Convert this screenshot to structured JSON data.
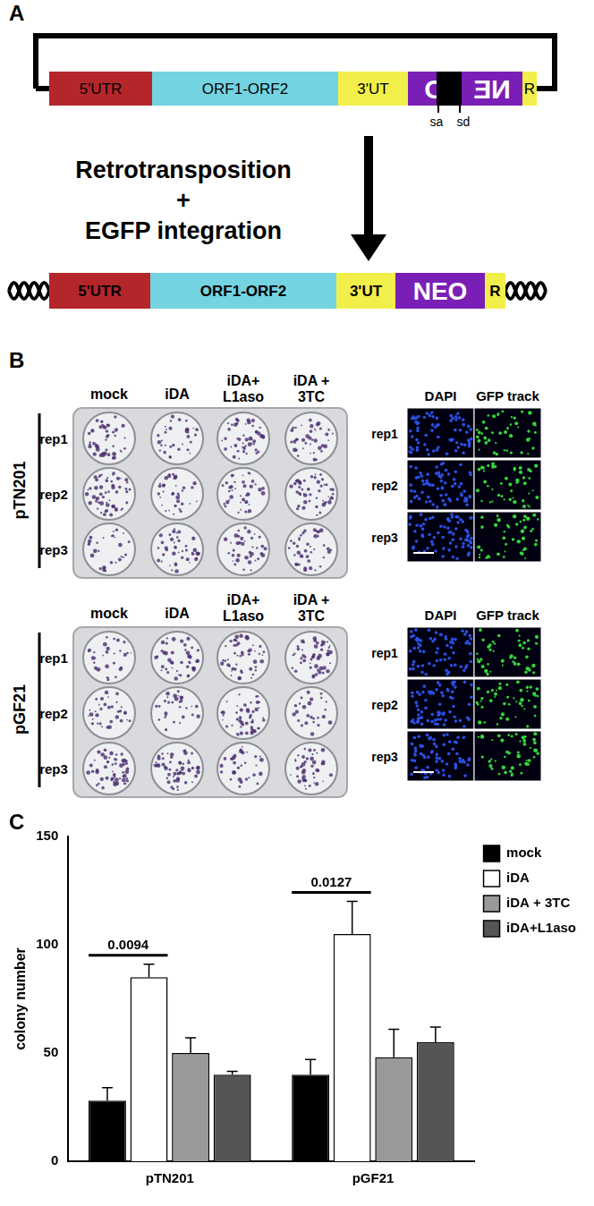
{
  "panel_labels": [
    "A",
    "B",
    "C"
  ],
  "panel_a": {
    "construct": [
      "5'UTR",
      "ORF1-ORF2",
      "3'UT",
      "O",
      "NE",
      "R"
    ],
    "splice_sites": [
      "sa",
      "sd"
    ],
    "arrow_text": [
      "Retrotransposition",
      "+",
      "EGFP integration"
    ],
    "product": [
      "5'UTR",
      "ORF1-ORF2",
      "3'UT",
      "NEO",
      "R"
    ]
  },
  "panel_b": {
    "plates": [
      {
        "construct": "pTN201",
        "columns": [
          [
            "mock"
          ],
          [
            "iDA"
          ],
          [
            "iDA+",
            "L1aso"
          ],
          [
            "iDA +",
            "3TC"
          ]
        ],
        "rows": [
          "rep1",
          "rep2",
          "rep3"
        ],
        "channels": [
          "DAPI",
          "GFP track"
        ]
      },
      {
        "construct": "pGF21",
        "columns": [
          [
            "mock"
          ],
          [
            "iDA"
          ],
          [
            "iDA+",
            "L1aso"
          ],
          [
            "iDA +",
            "3TC"
          ]
        ],
        "rows": [
          "rep1",
          "rep2",
          "rep3"
        ],
        "channels": [
          "DAPI",
          "GFP track"
        ]
      }
    ]
  },
  "chart_data": {
    "type": "bar",
    "categories": [
      "pTN201",
      "pGF21"
    ],
    "series": [
      {
        "name": "mock",
        "color": "#000000",
        "values": [
          28,
          40
        ],
        "errors": [
          6,
          7
        ]
      },
      {
        "name": "iDA",
        "color": "#ffffff",
        "values": [
          85,
          105
        ],
        "errors": [
          6,
          15
        ]
      },
      {
        "name": "iDA + 3TC",
        "color": "#999999",
        "values": [
          50,
          48
        ],
        "errors": [
          7,
          13
        ]
      },
      {
        "name": "iDA+L1aso",
        "color": "#555555",
        "values": [
          40,
          55
        ],
        "errors": [
          1.5,
          7
        ]
      }
    ],
    "y_label": "colony number",
    "ylim": [
      0,
      150
    ],
    "yticks": [
      0,
      50,
      100,
      150
    ],
    "grid": false,
    "legend": "right",
    "annotations": [
      {
        "text": "0.0094",
        "category": "pTN201",
        "from": "mock",
        "to": "iDA"
      },
      {
        "text": "0.0127",
        "category": "pGF21",
        "from": "mock",
        "to": "iDA"
      }
    ]
  }
}
